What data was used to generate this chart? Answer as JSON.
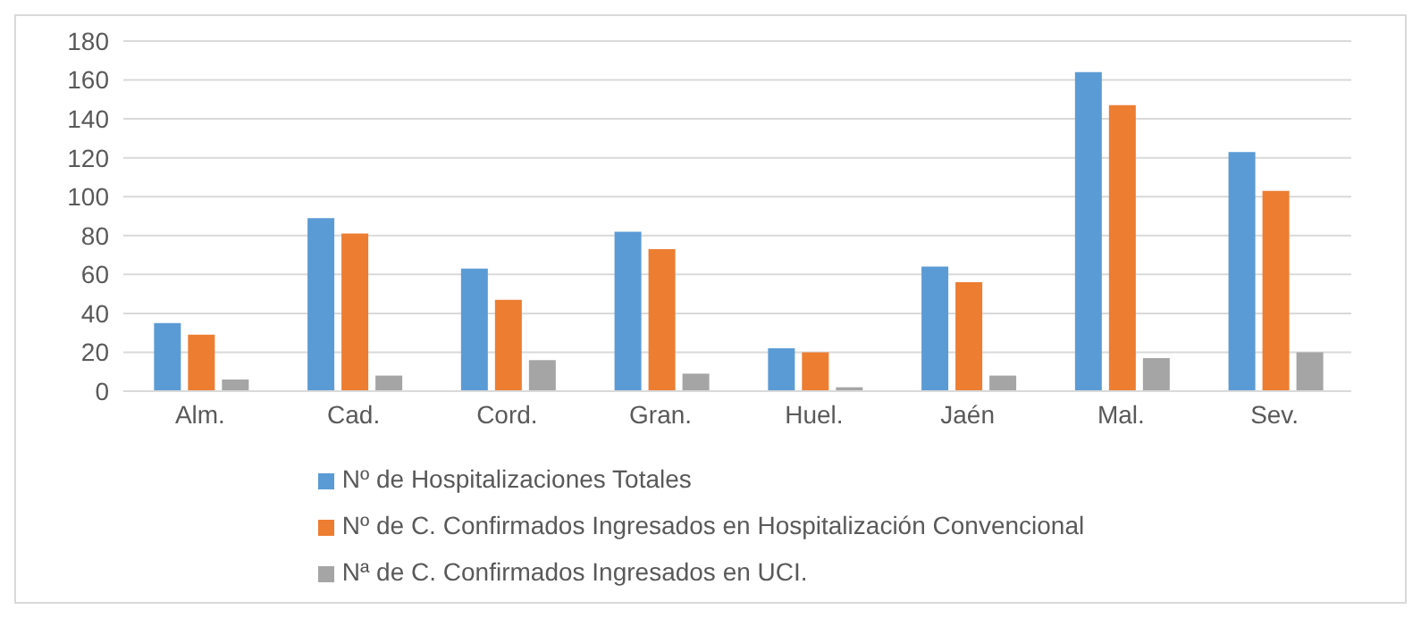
{
  "chart_data": {
    "type": "bar",
    "categories": [
      "Alm.",
      "Cad.",
      "Cord.",
      "Gran.",
      "Huel.",
      "Jaén",
      "Mal.",
      "Sev."
    ],
    "series": [
      {
        "name": "Nº de Hospitalizaciones Totales",
        "color": "#5b9bd5",
        "values": [
          35,
          89,
          63,
          82,
          22,
          64,
          164,
          123
        ]
      },
      {
        "name": "Nº de C. Confirmados Ingresados en Hospitalización Convencional",
        "color": "#ed7d31",
        "values": [
          29,
          81,
          47,
          73,
          20,
          56,
          147,
          103
        ]
      },
      {
        "name": "Nª de C. Confirmados Ingresados en UCI.",
        "color": "#a5a5a5",
        "values": [
          6,
          8,
          16,
          9,
          2,
          8,
          17,
          20
        ]
      }
    ],
    "ylim": [
      0,
      180
    ],
    "yticks": [
      0,
      20,
      40,
      60,
      80,
      100,
      120,
      140,
      160,
      180
    ],
    "grid": "y",
    "legend": "bottom"
  }
}
